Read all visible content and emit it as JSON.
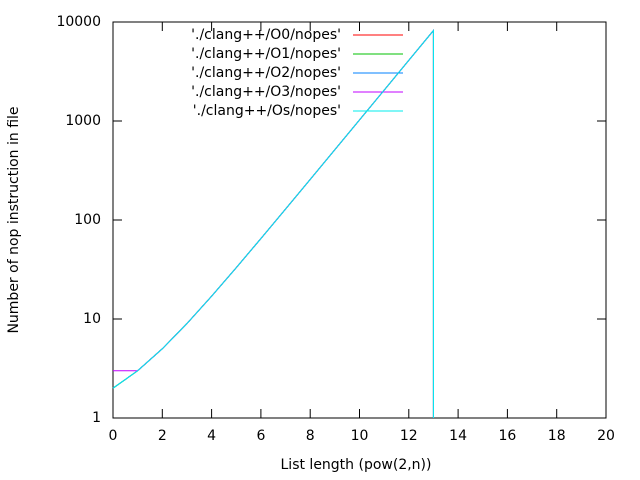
{
  "chart_data": {
    "type": "line",
    "x_label": "List length (pow(2,n))",
    "y_label": "Number of nop instruction in file",
    "x": [
      0,
      1,
      2,
      3,
      4,
      5,
      6,
      7,
      8,
      9,
      10,
      11,
      12,
      13,
      13
    ],
    "series": [
      {
        "name": "'./clang++/O0/nopes'",
        "color": "#ff0000",
        "values": [
          2,
          3,
          5,
          9,
          17,
          33,
          65,
          129,
          257,
          513,
          1025,
          2049,
          4097,
          8193,
          1
        ]
      },
      {
        "name": "'./clang++/O1/nopes'",
        "color": "#00c000",
        "values": [
          2,
          3,
          5,
          9,
          17,
          33,
          65,
          129,
          257,
          513,
          1025,
          2049,
          4097,
          8193,
          1
        ]
      },
      {
        "name": "'./clang++/O2/nopes'",
        "color": "#0080ff",
        "values": [
          2,
          3,
          5,
          9,
          17,
          33,
          65,
          129,
          257,
          513,
          1025,
          2049,
          4097,
          8193,
          1
        ]
      },
      {
        "name": "'./clang++/O3/nopes'",
        "color": "#c000ff",
        "values": [
          3,
          3,
          5,
          9,
          17,
          33,
          65,
          129,
          257,
          513,
          1025,
          2049,
          4097,
          8193,
          1
        ]
      },
      {
        "name": "'./clang++/Os/nopes'",
        "color": "#00eeee",
        "values": [
          2,
          3,
          5,
          9,
          17,
          33,
          65,
          129,
          257,
          513,
          1025,
          2049,
          4097,
          8193,
          1
        ]
      }
    ],
    "xlim": [
      0,
      20
    ],
    "xticks": [
      0,
      2,
      4,
      6,
      8,
      10,
      12,
      14,
      16,
      18,
      20
    ],
    "ylim": [
      1,
      10000
    ],
    "yticks": [
      1,
      10,
      100,
      1000,
      10000
    ],
    "ylog": true,
    "legend": "top-left"
  }
}
